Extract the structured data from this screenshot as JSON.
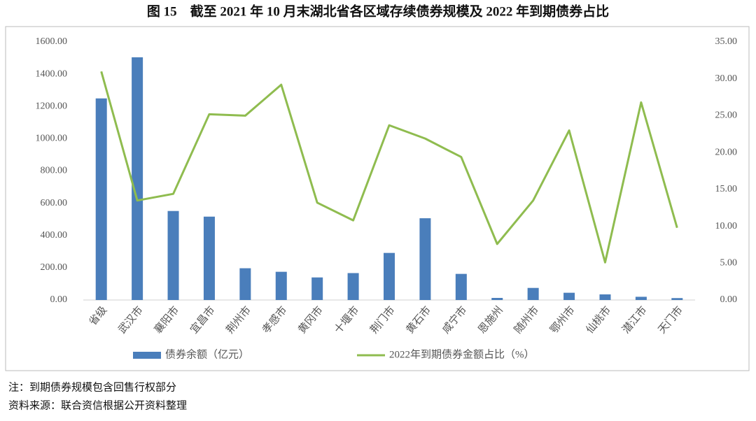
{
  "chart_data": {
    "type": "bar-line",
    "title": "图 15　截至 2021 年 10 月末湖北省各区域存续债券规模及 2022 年到期债券占比",
    "categories": [
      "省级",
      "武汉市",
      "襄阳市",
      "宜昌市",
      "荆州市",
      "孝感市",
      "黄冈市",
      "十堰市",
      "荆门市",
      "黄石市",
      "咸宁市",
      "恩施州",
      "随州市",
      "鄂州市",
      "仙桃市",
      "潜江市",
      "天门市"
    ],
    "series": [
      {
        "name": "债券余额（亿元）",
        "type": "bar",
        "color": "#4a7ebb",
        "values": [
          1250,
          1505,
          552,
          517,
          197,
          175,
          140,
          167,
          292,
          507,
          162,
          13,
          75,
          45,
          35,
          20,
          12
        ]
      },
      {
        "name": "2022年到期债券金额占比（%）",
        "type": "line",
        "axis": "y2",
        "color": "#8fbc4f",
        "values": [
          31.0,
          13.5,
          14.4,
          25.2,
          25.0,
          29.2,
          13.2,
          10.8,
          23.7,
          21.9,
          19.4,
          7.6,
          13.5,
          23.0,
          5.1,
          26.8,
          9.8
        ]
      }
    ],
    "ylim": [
      0,
      1600
    ],
    "yticks": [
      {
        "value": 0,
        "label": "0.00"
      },
      {
        "value": 200,
        "label": "200.00"
      },
      {
        "value": 400,
        "label": "400.00"
      },
      {
        "value": 600,
        "label": "600.00"
      },
      {
        "value": 800,
        "label": "800.00"
      },
      {
        "value": 1000,
        "label": "1000.00"
      },
      {
        "value": 1200,
        "label": "1200.00"
      },
      {
        "value": 1400,
        "label": "1400.00"
      },
      {
        "value": 1600,
        "label": "1600.00"
      }
    ],
    "y2lim": [
      0,
      35
    ],
    "y2ticks": [
      {
        "value": 0,
        "label": "0.00"
      },
      {
        "value": 5,
        "label": "5.00"
      },
      {
        "value": 10,
        "label": "10.00"
      },
      {
        "value": 15,
        "label": "15.00"
      },
      {
        "value": 20,
        "label": "20.00"
      },
      {
        "value": 25,
        "label": "25.00"
      },
      {
        "value": 30,
        "label": "30.00"
      },
      {
        "value": 35,
        "label": "35.00"
      }
    ],
    "legend": "bottom",
    "notes": [
      "注：到期债券规模包含回售行权部分",
      "资料来源：联合资信根据公开资料整理"
    ]
  }
}
